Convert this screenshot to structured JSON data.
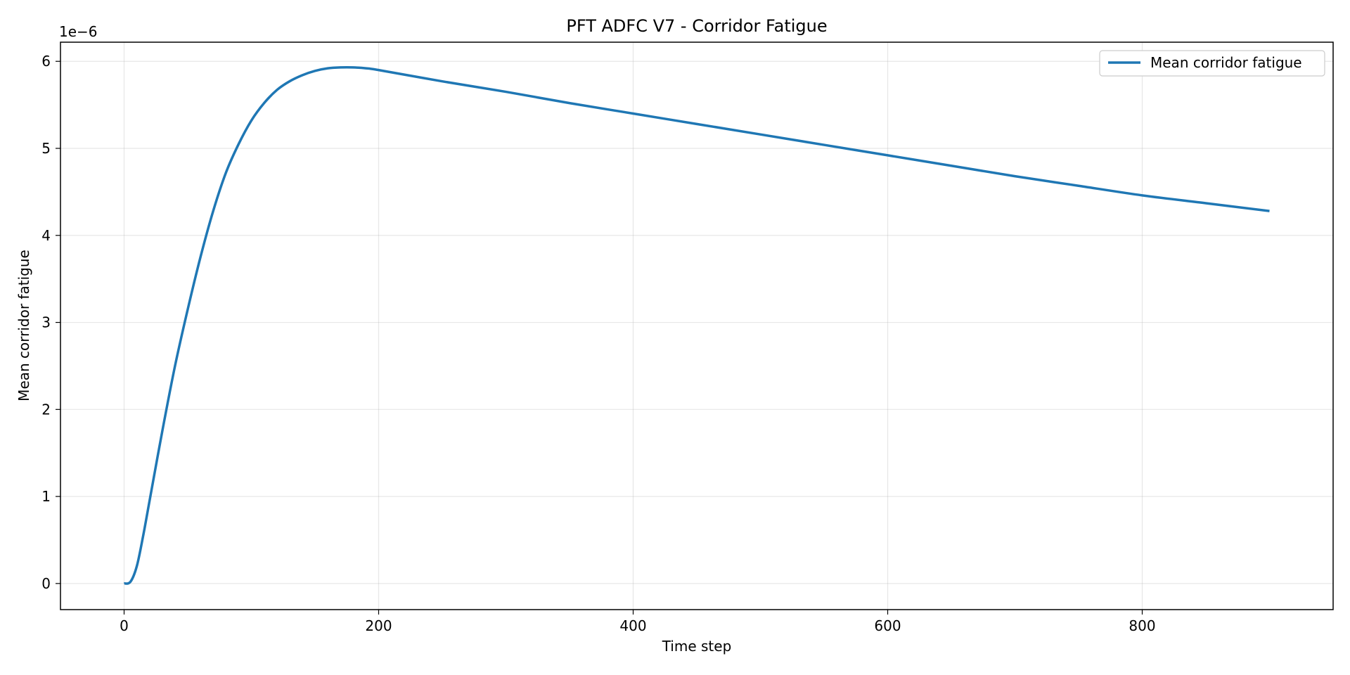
{
  "chart_data": {
    "type": "line",
    "title": "PFT ADFC V7 - Corridor Fatigue",
    "xlabel": "Time step",
    "ylabel": "Mean corridor fatigue",
    "y_offset_label": "1e−6",
    "xlim": [
      -50,
      950
    ],
    "ylim": [
      -0.3,
      6.22
    ],
    "y_units_note": "y values in units of 1e-6",
    "x_ticks": [
      0,
      200,
      400,
      600,
      800
    ],
    "x_tick_labels": [
      "0",
      "200",
      "400",
      "600",
      "800"
    ],
    "y_ticks": [
      0,
      1,
      2,
      3,
      4,
      5,
      6
    ],
    "y_tick_labels": [
      "0",
      "1",
      "2",
      "3",
      "4",
      "5",
      "6"
    ],
    "grid": true,
    "legend_position": "upper right",
    "series": [
      {
        "name": "Mean corridor fatigue",
        "color": "#1f77b4",
        "x": [
          0,
          5,
          10,
          15,
          20,
          30,
          40,
          50,
          60,
          70,
          80,
          90,
          100,
          110,
          120,
          130,
          140,
          150,
          160,
          170,
          180,
          190,
          200,
          250,
          300,
          350,
          400,
          450,
          500,
          550,
          600,
          650,
          700,
          750,
          800,
          850,
          900
        ],
        "y": [
          0,
          0.02,
          0.2,
          0.55,
          0.95,
          1.75,
          2.5,
          3.15,
          3.75,
          4.28,
          4.72,
          5.05,
          5.32,
          5.52,
          5.67,
          5.77,
          5.84,
          5.89,
          5.92,
          5.93,
          5.93,
          5.92,
          5.9,
          5.77,
          5.65,
          5.52,
          5.4,
          5.28,
          5.16,
          5.04,
          4.92,
          4.8,
          4.68,
          4.57,
          4.46,
          4.37,
          4.28
        ]
      }
    ]
  }
}
